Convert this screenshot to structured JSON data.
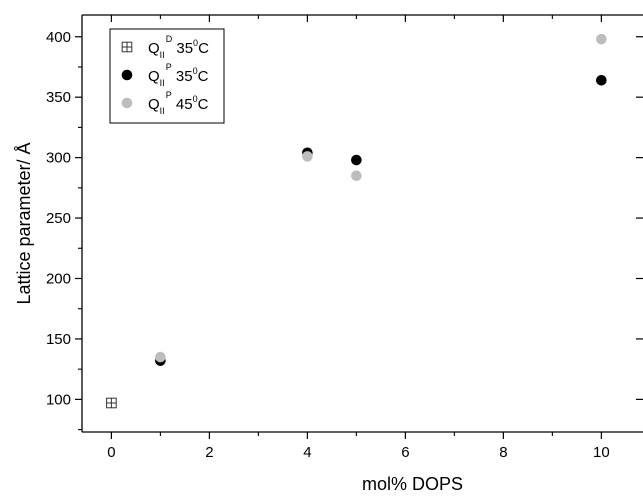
{
  "chart_data": {
    "type": "scatter",
    "xlabel": "mol% DOPS",
    "ylabel": "Lattice parameter/ Å",
    "xlim": [
      -0.6,
      10.85
    ],
    "ylim": [
      73,
      418
    ],
    "x_ticks": [
      0,
      2,
      4,
      6,
      8,
      10
    ],
    "y_ticks": [
      100,
      150,
      200,
      250,
      300,
      350,
      400
    ],
    "x_tick_labels": [
      "0",
      "2",
      "4",
      "6",
      "8",
      "10"
    ],
    "y_tick_labels": [
      "100",
      "150",
      "200",
      "250",
      "300",
      "350",
      "400"
    ],
    "grid": false,
    "legend_position": "top-left",
    "series": [
      {
        "legend": {
          "main": "Q",
          "sub": "II",
          "sup": "D",
          "temp": " 35",
          "deg": "0",
          "unit": "C"
        },
        "marker": "square-cross",
        "color": "#333333",
        "points": [
          {
            "x": 0,
            "y": 97
          }
        ]
      },
      {
        "legend": {
          "main": "Q",
          "sub": "II",
          "sup": "P",
          "temp": " 35",
          "deg": "0",
          "unit": "C"
        },
        "marker": "circle",
        "color": "#000000",
        "points": [
          {
            "x": 1,
            "y": 132
          },
          {
            "x": 4,
            "y": 304
          },
          {
            "x": 5,
            "y": 298
          },
          {
            "x": 10,
            "y": 364
          }
        ]
      },
      {
        "legend": {
          "main": "Q",
          "sub": "II",
          "sup": "P",
          "temp": " 45",
          "deg": "0",
          "unit": "C"
        },
        "marker": "circle",
        "color": "#bdbdbd",
        "points": [
          {
            "x": 1,
            "y": 135
          },
          {
            "x": 4,
            "y": 301
          },
          {
            "x": 5,
            "y": 285
          },
          {
            "x": 10,
            "y": 398
          }
        ]
      }
    ]
  }
}
